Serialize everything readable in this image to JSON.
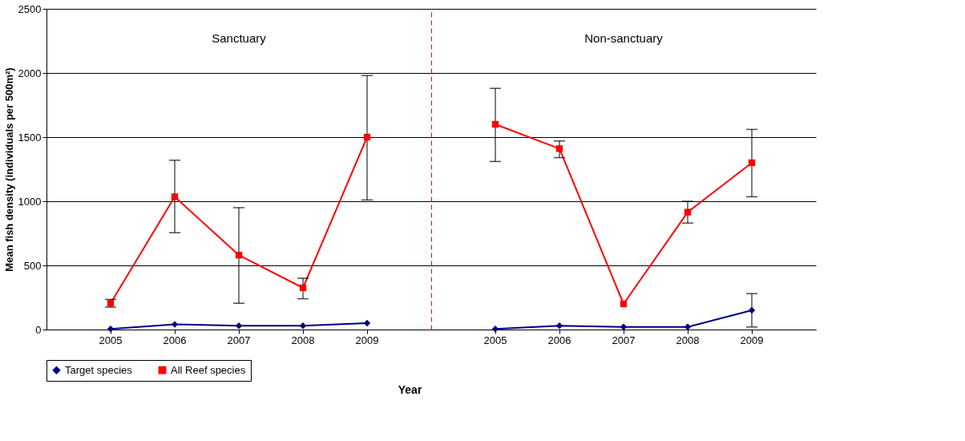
{
  "chart_data": [
    {
      "type": "line",
      "xlabel": "Year",
      "ylabel": "Mean fish density (individuals per 500m²)",
      "categories": [
        "2005",
        "2006",
        "2007",
        "2008",
        "2009"
      ],
      "ylim": [
        0,
        2500
      ],
      "yticks": [
        0,
        500,
        1000,
        1500,
        2000,
        2500
      ],
      "series": [
        {
          "name": "Target species",
          "color": "#000080",
          "marker": "diamond",
          "values": [
            5,
            40,
            30,
            30,
            50
          ]
        },
        {
          "name": "All Reef species",
          "color": "#ff0000",
          "marker": "square",
          "values": [
            205,
            1035,
            580,
            325,
            1500
          ],
          "errors": [
            [
              175,
              235
            ],
            [
              755,
              1320
            ],
            [
              205,
              950
            ],
            [
              240,
              400
            ],
            [
              1010,
              1980
            ]
          ]
        }
      ],
      "annotations": [
        "Sanctuary"
      ],
      "grid": "y",
      "legend": "bottom",
      "line_style": "solid"
    },
    {
      "type": "line",
      "categories": [
        "2005",
        "2006",
        "2007",
        "2008",
        "2009"
      ],
      "ylim": [
        0,
        2500
      ],
      "yticks": [
        0,
        500,
        1000,
        1500,
        2000,
        2500
      ],
      "tick_labels": "x",
      "series": [
        {
          "name": "Target species",
          "color": "#000080",
          "marker": "diamond",
          "values": [
            5,
            30,
            20,
            20,
            150
          ],
          "errors": [
            null,
            null,
            null,
            null,
            [
              20,
              280
            ]
          ]
        },
        {
          "name": "All Reef species",
          "color": "#ff0000",
          "marker": "square",
          "values": [
            1600,
            1410,
            200,
            915,
            1300
          ],
          "errors": [
            [
              1310,
              1880
            ],
            [
              1340,
              1470
            ],
            null,
            [
              830,
              1000
            ],
            [
              1035,
              1560
            ]
          ]
        }
      ],
      "annotations": [
        "Non-sanctuary"
      ],
      "grid": "y",
      "legend": "bottom",
      "line_style": "solid"
    }
  ]
}
